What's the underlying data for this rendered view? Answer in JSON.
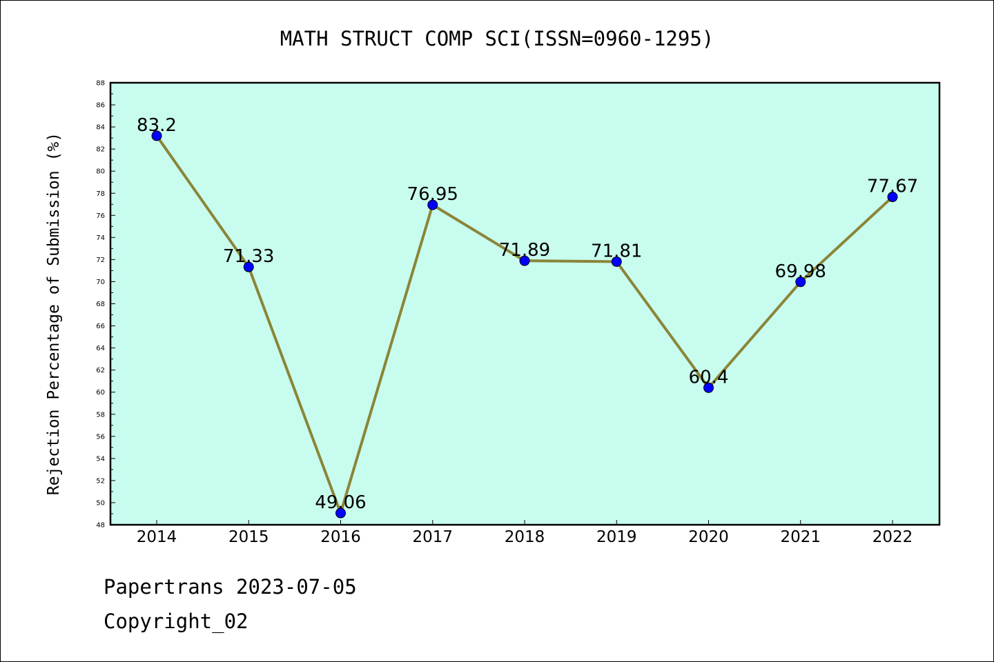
{
  "chart_data": {
    "type": "line",
    "title": "MATH STRUCT COMP SCI(ISSN=0960-1295)",
    "ylabel": "Rejection Percentage of Submission (%)",
    "xlabel": "",
    "categories": [
      "2014",
      "2015",
      "2016",
      "2017",
      "2018",
      "2019",
      "2020",
      "2021",
      "2022"
    ],
    "series": [
      {
        "values": [
          83.2,
          71.33,
          49.06,
          76.95,
          71.89,
          71.81,
          60.4,
          69.98,
          77.67
        ],
        "labels": [
          "83.2",
          "71.33",
          "49.06",
          "76.95",
          "71.89",
          "71.81",
          "60.4",
          "69.98",
          "77.67"
        ],
        "line_color": "#8b8538",
        "marker_color": "#0000ff"
      }
    ],
    "ylim": [
      48,
      88
    ],
    "yticks": [
      "48",
      "50",
      "52",
      "54",
      "56",
      "58",
      "60",
      "62",
      "64",
      "66",
      "68",
      "70",
      "72",
      "74",
      "76",
      "78",
      "80",
      "82",
      "84",
      "86",
      "88"
    ],
    "grid": false,
    "legend": "none",
    "plot_background": "#c8fcee"
  },
  "footer": {
    "line1": "Papertrans 2023-07-05",
    "line2": "Copyright_02"
  }
}
